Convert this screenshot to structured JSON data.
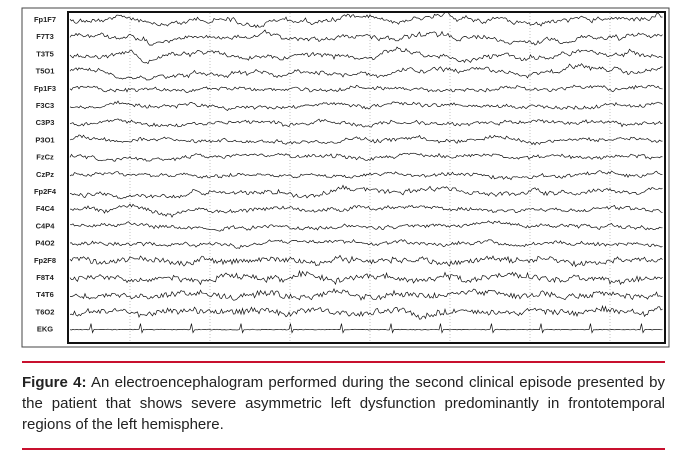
{
  "figure": {
    "channels": [
      "Fp1F7",
      "F7T3",
      "T3T5",
      "T5O1",
      "Fp1F3",
      "F3C3",
      "C3P3",
      "P3O1",
      "FzCz",
      "CzPz",
      "Fp2F4",
      "F4C4",
      "C4P4",
      "P4O2",
      "Fp2F8",
      "F8T4",
      "T4T6",
      "T6O2",
      "EKG"
    ],
    "caption": {
      "label": "Figure 4:",
      "text": "An electroencephalogram performed during the second clinical episode presented by the patient that shows severe asymmetric left dysfunction predominantly in frontotemporal regions of the left hemisphere."
    }
  }
}
